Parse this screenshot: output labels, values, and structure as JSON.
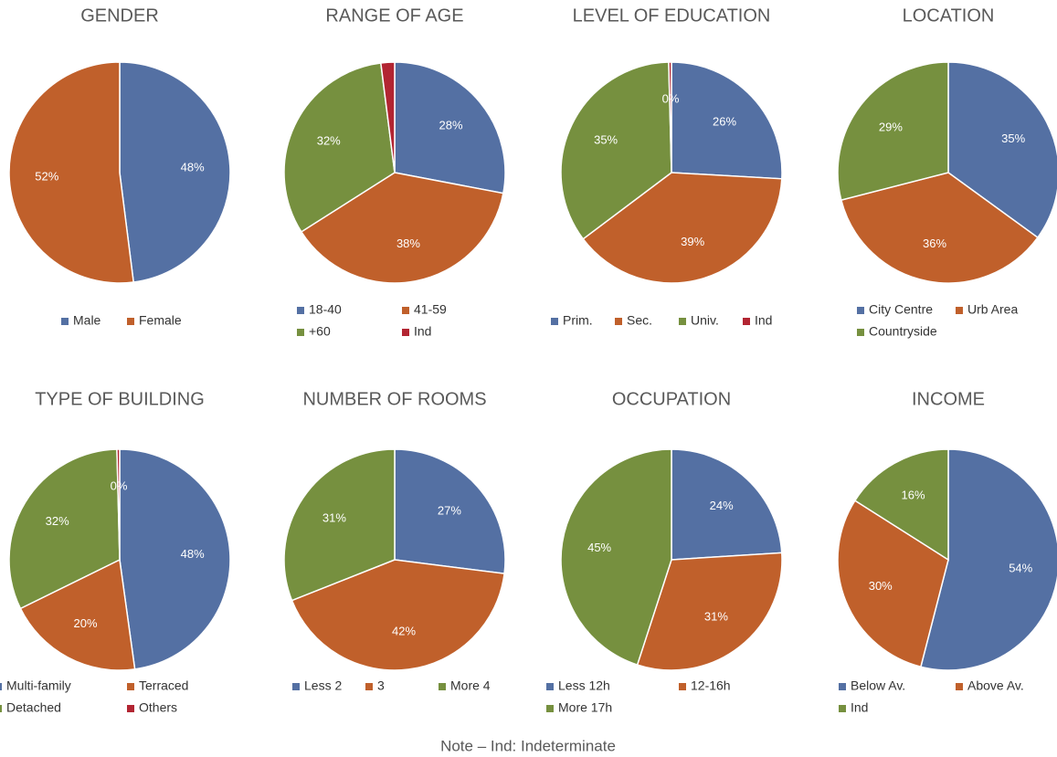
{
  "chart_data": [
    {
      "type": "pie",
      "title": "GENDER",
      "categories": [
        "Male",
        "Female"
      ],
      "values": [
        48,
        52
      ],
      "value_labels": [
        "48%",
        "52%"
      ],
      "colors": [
        "#5470a3",
        "#c0602b"
      ]
    },
    {
      "type": "pie",
      "title": "RANGE OF AGE",
      "categories": [
        "18-40",
        "41-59",
        "+60",
        "Ind"
      ],
      "values": [
        28,
        38,
        32,
        2
      ],
      "value_labels": [
        "28%",
        "38%",
        "32%",
        null
      ],
      "colors": [
        "#5470a3",
        "#c0602b",
        "#76903f",
        "#b22532"
      ]
    },
    {
      "type": "pie",
      "title": "LEVEL OF EDUCATION",
      "categories": [
        "Prim.",
        "Sec.",
        "Univ.",
        "Ind"
      ],
      "values": [
        26,
        39,
        35,
        0.4
      ],
      "value_labels": [
        "26%",
        "39%",
        "35%",
        "0%"
      ],
      "colors": [
        "#5470a3",
        "#c0602b",
        "#76903f",
        "#b22532"
      ]
    },
    {
      "type": "pie",
      "title": "LOCATION",
      "categories": [
        "City Centre",
        "Urb Area",
        "Countryside"
      ],
      "values": [
        35,
        36,
        29
      ],
      "value_labels": [
        "35%",
        "36%",
        "29%"
      ],
      "colors": [
        "#5470a3",
        "#c0602b",
        "#76903f"
      ]
    },
    {
      "type": "pie",
      "title": "TYPE OF BUILDING",
      "categories": [
        "Multi-family",
        "Terraced",
        "Detached",
        "Others"
      ],
      "values": [
        48,
        20,
        32,
        0.4
      ],
      "value_labels": [
        "48%",
        "20%",
        "32%",
        "0%"
      ],
      "colors": [
        "#5470a3",
        "#c0602b",
        "#76903f",
        "#b22532"
      ]
    },
    {
      "type": "pie",
      "title": "NUMBER OF ROOMS",
      "categories": [
        "Less 2",
        "3",
        "More 4"
      ],
      "values": [
        27,
        42,
        31
      ],
      "value_labels": [
        "27%",
        "42%",
        "31%"
      ],
      "colors": [
        "#5470a3",
        "#c0602b",
        "#76903f"
      ]
    },
    {
      "type": "pie",
      "title": "OCCUPATION",
      "categories": [
        "Less 12h",
        "12-16h",
        "More 17h"
      ],
      "values": [
        24,
        31,
        45
      ],
      "value_labels": [
        "24%",
        "31%",
        "45%"
      ],
      "colors": [
        "#5470a3",
        "#c0602b",
        "#76903f"
      ]
    },
    {
      "type": "pie",
      "title": "INCOME",
      "categories": [
        "Below Av.",
        "Above Av.",
        "Ind"
      ],
      "values": [
        54,
        30,
        16
      ],
      "value_labels": [
        "54%",
        "30%",
        "16%"
      ],
      "colors": [
        "#5470a3",
        "#c0602b",
        "#76903f"
      ]
    }
  ],
  "note": "Note – Ind: Indeterminate"
}
